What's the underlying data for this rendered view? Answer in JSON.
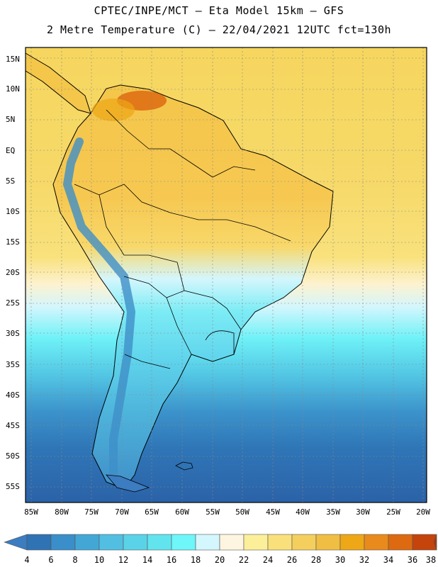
{
  "header": {
    "line1": "CPTEC/INPE/MCT –  Eta Model 15km – GFS",
    "line2": "2 Metre Temperature (C) – 22/04/2021 12UTC fct=130h"
  },
  "map": {
    "region": "South America",
    "variable": "2 Metre Temperature",
    "unit": "C",
    "lat_labels": [
      "15N",
      "10N",
      "5N",
      "EQ",
      "5S",
      "10S",
      "15S",
      "20S",
      "25S",
      "30S",
      "35S",
      "40S",
      "45S",
      "50S",
      "55S"
    ],
    "lon_labels": [
      "85W",
      "80W",
      "75W",
      "70W",
      "65W",
      "60W",
      "55W",
      "50W",
      "45W",
      "40W",
      "35W",
      "30W",
      "25W",
      "20W"
    ]
  },
  "colorbar": {
    "labels": [
      "4",
      "6",
      "8",
      "10",
      "12",
      "14",
      "16",
      "18",
      "20",
      "22",
      "24",
      "26",
      "28",
      "30",
      "32",
      "34",
      "36",
      "38"
    ],
    "colors": [
      "#3c7cc0",
      "#2f73b5",
      "#3a8fca",
      "#43a7d6",
      "#52bfe2",
      "#5ad3e8",
      "#62e4ef",
      "#6ef6f9",
      "#d4f6fd",
      "#fdf5e0",
      "#fcef9a",
      "#f9e07a",
      "#f4cf5e",
      "#f0be42",
      "#eea716",
      "#e98a1c",
      "#dd6a10",
      "#c4440b",
      "#a8380c"
    ]
  }
}
